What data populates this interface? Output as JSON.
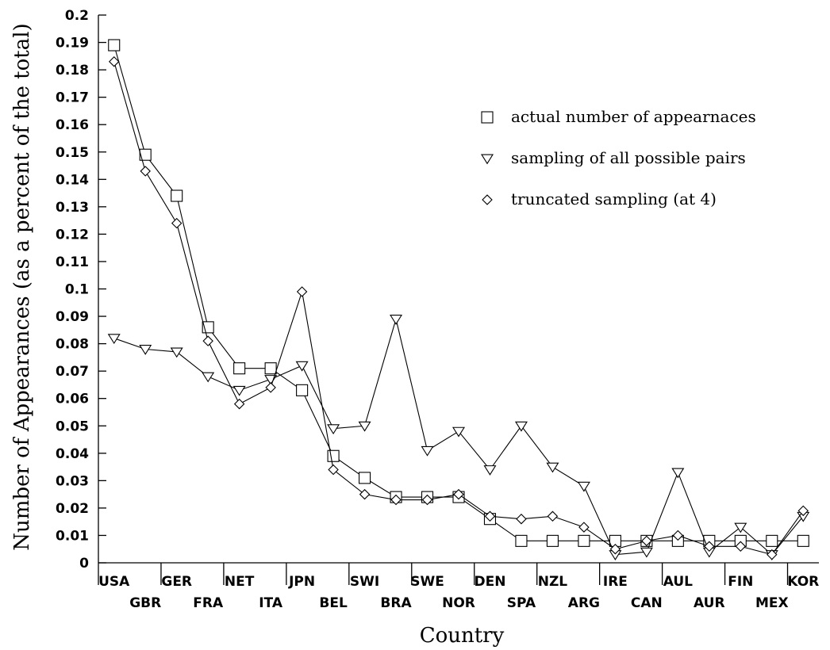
{
  "chart_data": {
    "type": "line",
    "xlabel": "Country",
    "ylabel": "Number of Appearances (as a percent of the total)",
    "ylim": [
      0,
      0.2
    ],
    "yticks": [
      0,
      0.01,
      0.02,
      0.03,
      0.04,
      0.05,
      0.06,
      0.07,
      0.08,
      0.09,
      0.1,
      0.11,
      0.12,
      0.13,
      0.14,
      0.15,
      0.16,
      0.17,
      0.18,
      0.19,
      0.2
    ],
    "ytick_labels": [
      "0",
      "0.01",
      "0.02",
      "0.03",
      "0.04",
      "0.05",
      "0.06",
      "0.07",
      "0.08",
      "0.09",
      "0.1",
      "0.11",
      "0.12",
      "0.13",
      "0.14",
      "0.15",
      "0.16",
      "0.17",
      "0.18",
      "0.19",
      "0.2"
    ],
    "categories": [
      "USA",
      "GBR",
      "GER",
      "FRA",
      "NET",
      "ITA",
      "JPN",
      "BEL",
      "SWI",
      "BRA",
      "SWE",
      "NOR",
      "DEN",
      "SPA",
      "NZL",
      "ARG",
      "IRE",
      "CAN",
      "AUL",
      "AUR",
      "FIN",
      "MEX",
      "KOR"
    ],
    "legend_position": "top-right",
    "grid": false,
    "series": [
      {
        "name": "actual number of appearnaces",
        "marker": "square",
        "values": [
          0.189,
          0.149,
          0.134,
          0.086,
          0.071,
          0.071,
          0.063,
          0.039,
          0.031,
          0.024,
          0.024,
          0.024,
          0.016,
          0.008,
          0.008,
          0.008,
          0.008,
          0.008,
          0.008,
          0.008,
          0.008,
          0.008,
          0.008
        ]
      },
      {
        "name": "sampling of all possible pairs",
        "marker": "triangle-down",
        "values": [
          0.082,
          0.078,
          0.077,
          0.068,
          0.063,
          0.067,
          0.072,
          0.049,
          0.05,
          0.089,
          0.041,
          0.048,
          0.034,
          0.05,
          0.035,
          0.028,
          0.003,
          0.004,
          0.033,
          0.004,
          0.013,
          0.003,
          0.017
        ]
      },
      {
        "name": "truncated sampling (at 4)",
        "marker": "diamond",
        "values": [
          0.183,
          0.143,
          0.124,
          0.081,
          0.058,
          0.064,
          0.099,
          0.034,
          0.025,
          0.023,
          0.023,
          0.025,
          0.017,
          0.016,
          0.017,
          0.013,
          0.005,
          0.008,
          0.01,
          0.006,
          0.006,
          0.003,
          0.019
        ]
      }
    ]
  }
}
